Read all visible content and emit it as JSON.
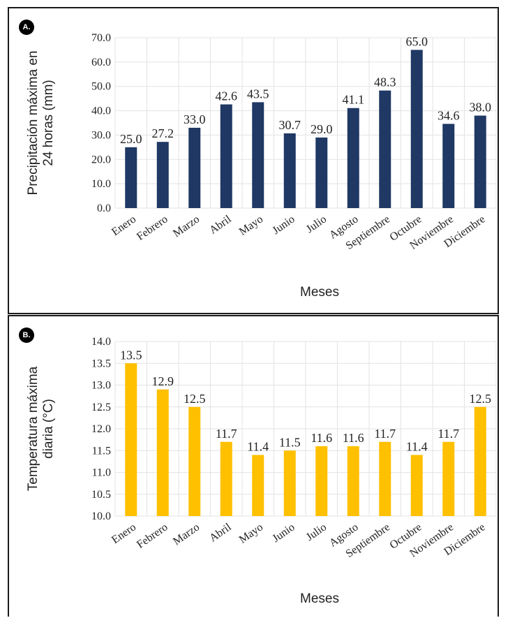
{
  "chart_data": [
    {
      "type": "bar",
      "panel_label": "A.",
      "categories": [
        "Enero",
        "Febrero",
        "Marzo",
        "Abril",
        "Mayo",
        "Junio",
        "Julio",
        "Agosto",
        "Septiembre",
        "Octubre",
        "Noviembre",
        "Diciembre"
      ],
      "values": [
        25.0,
        27.2,
        33.0,
        42.6,
        43.5,
        30.7,
        29.0,
        41.1,
        48.3,
        65.0,
        34.6,
        38.0
      ],
      "value_labels": [
        "25.0",
        "27.2",
        "33.0",
        "42.6",
        "43.5",
        "30.7",
        "29.0",
        "41.1",
        "48.3",
        "65.0",
        "34.6",
        "38.0"
      ],
      "xlabel": "Meses",
      "ylabel_lines": [
        "Precipitación máxima en",
        "24 horas (mm)"
      ],
      "ylim": [
        0,
        70
      ],
      "yticks": [
        "0.0",
        "10.0",
        "20.0",
        "30.0",
        "40.0",
        "50.0",
        "60.0",
        "70.0"
      ],
      "grid": true,
      "color": "#1f3864"
    },
    {
      "type": "bar",
      "panel_label": "B.",
      "categories": [
        "Enero",
        "Febrero",
        "Marzo",
        "Abril",
        "Mayo",
        "Junio",
        "Julio",
        "Agosto",
        "Septiembre",
        "Octubre",
        "Noviembre",
        "Diciembre"
      ],
      "values": [
        13.5,
        12.9,
        12.5,
        11.7,
        11.4,
        11.5,
        11.6,
        11.6,
        11.7,
        11.4,
        11.7,
        12.5
      ],
      "value_labels": [
        "13.5",
        "12.9",
        "12.5",
        "11.7",
        "11.4",
        "11.5",
        "11.6",
        "11.6",
        "11.7",
        "11.4",
        "11.7",
        "12.5"
      ],
      "xlabel": "Meses",
      "ylabel_lines": [
        "Temperatura máxima",
        "diaria (°C)"
      ],
      "ylim": [
        10,
        14
      ],
      "yticks": [
        "10.0",
        "10.5",
        "11.0",
        "11.5",
        "12.0",
        "12.5",
        "13.0",
        "13.5",
        "14.0"
      ],
      "grid": true,
      "color": "#ffc000"
    }
  ]
}
